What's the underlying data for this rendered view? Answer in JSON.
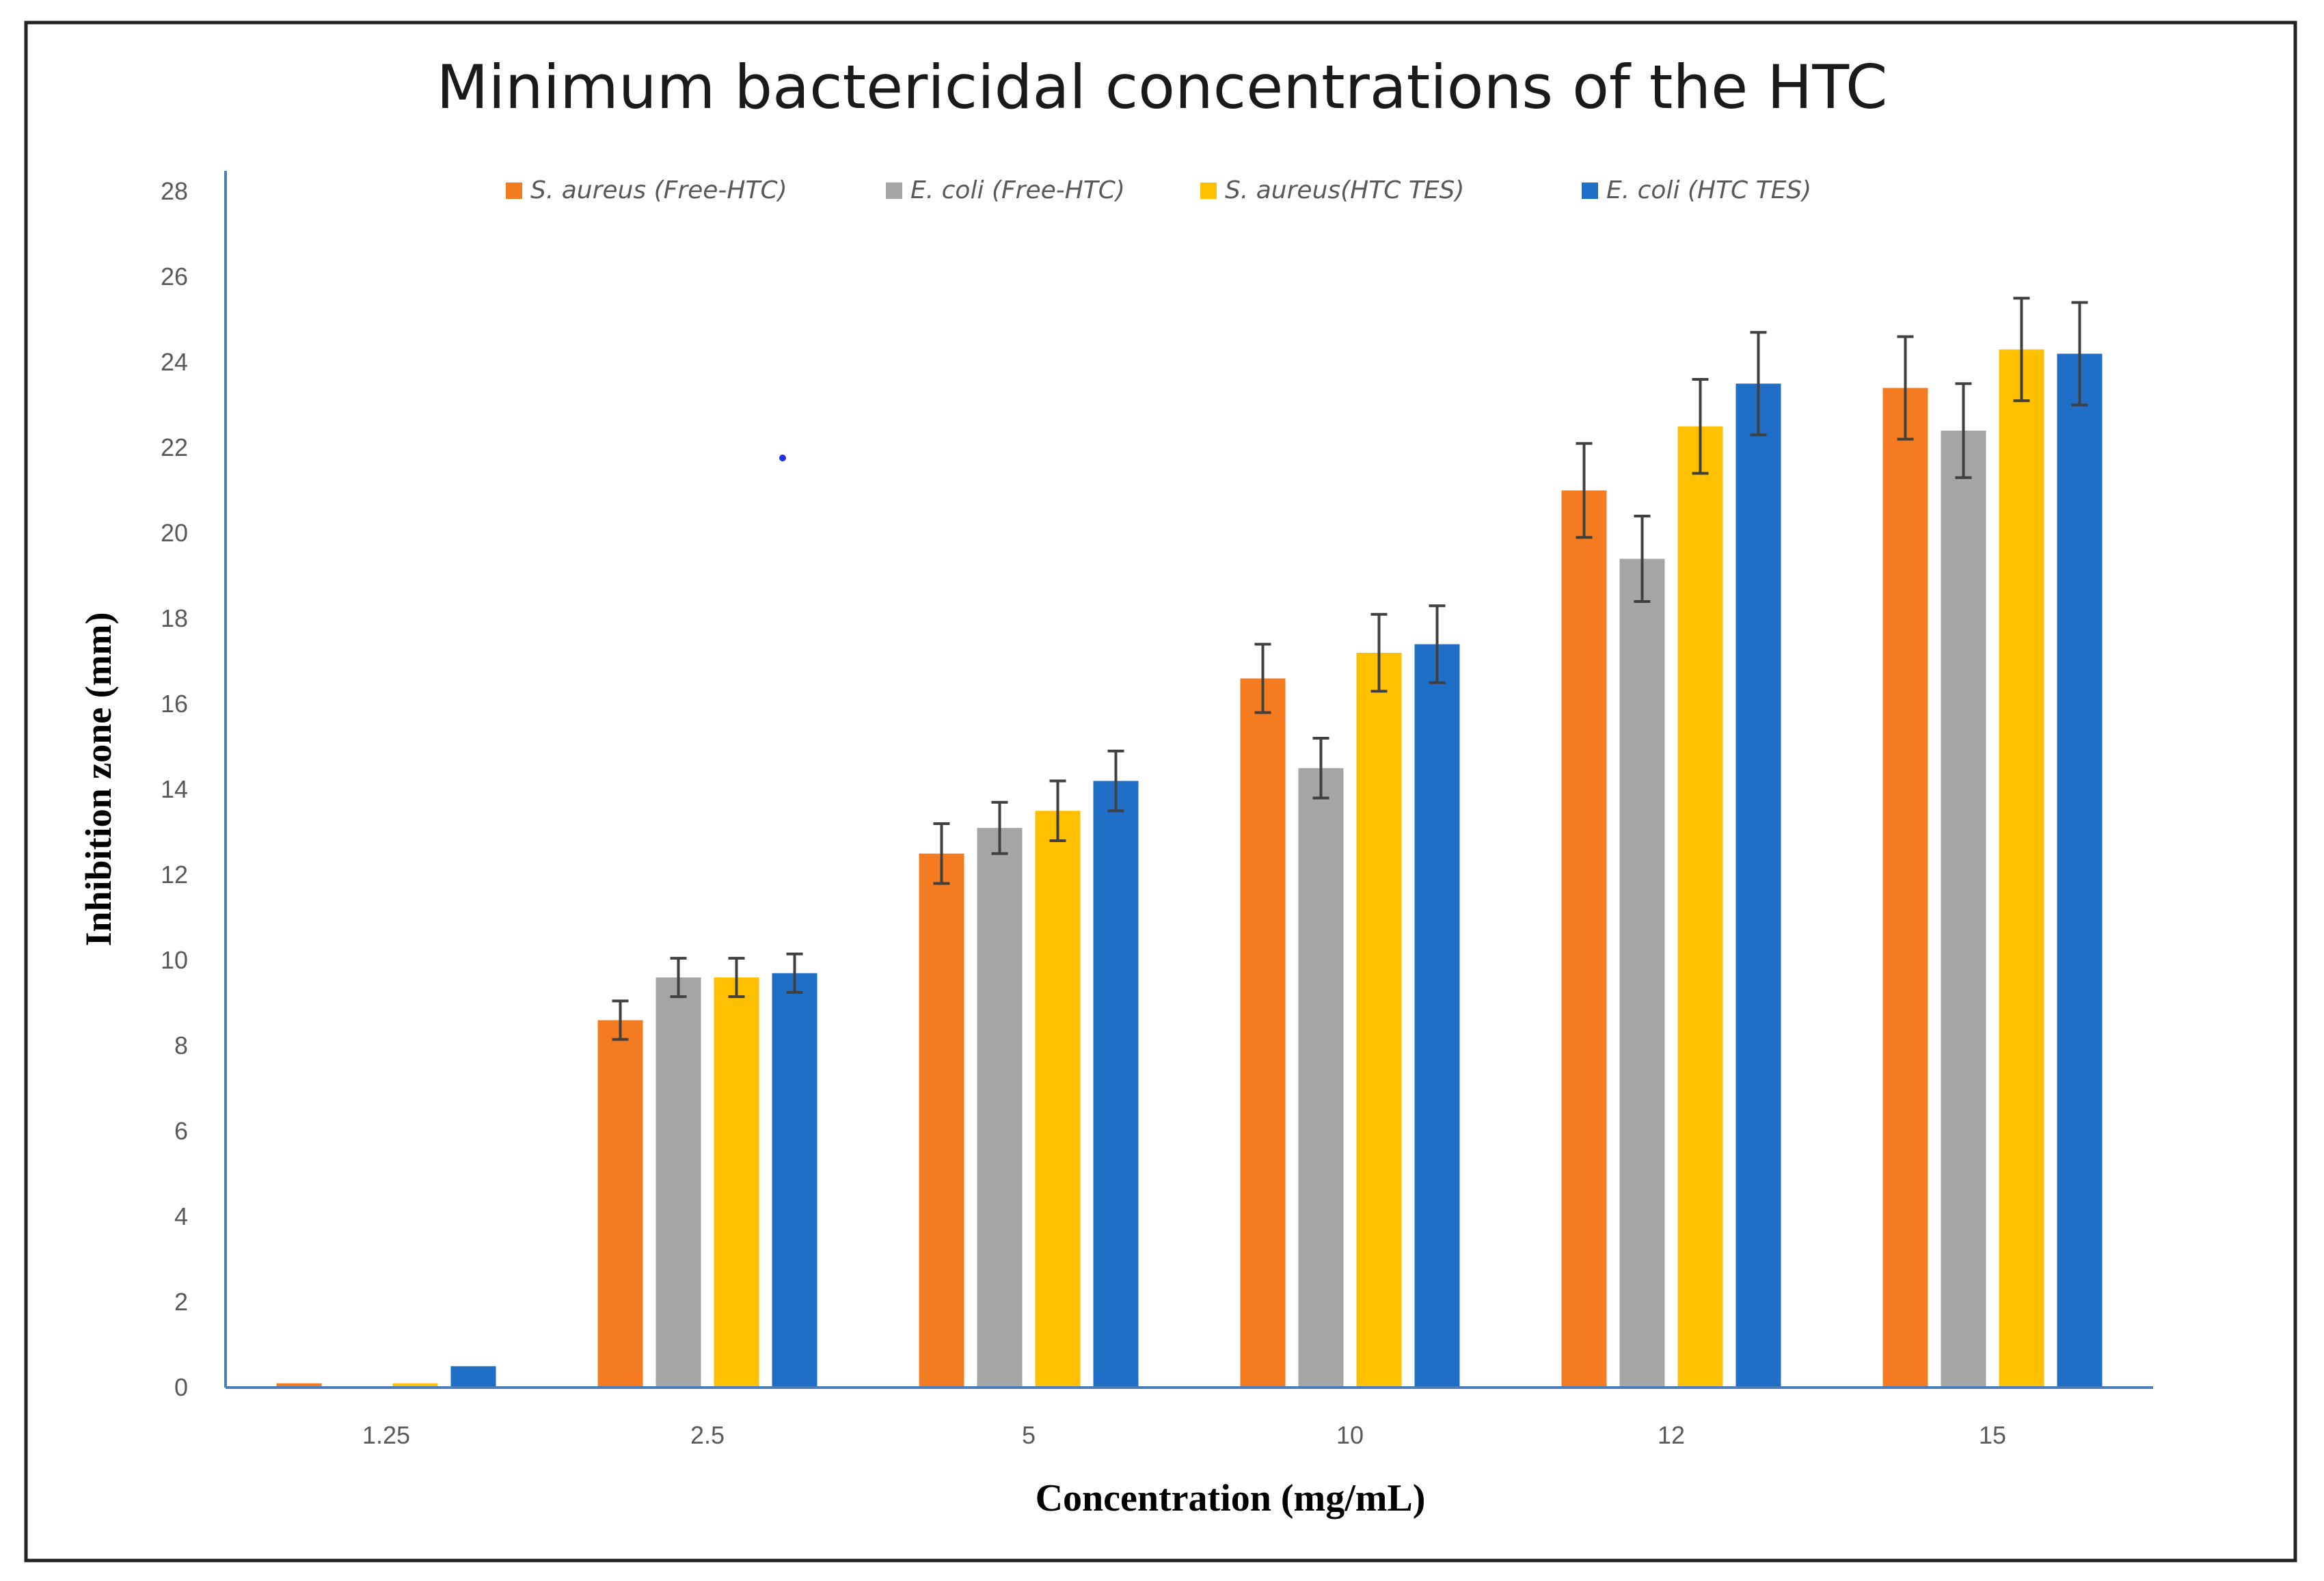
{
  "chart_data": {
    "type": "bar",
    "title": "Minimum bactericidal concentrations of the HTC",
    "xlabel": "Concentration (mg/mL)",
    "ylabel": "Inhibition zone (mm)",
    "ylim": [
      0,
      28
    ],
    "yticks": [
      0,
      2,
      4,
      6,
      8,
      10,
      12,
      14,
      16,
      18,
      20,
      22,
      24,
      26,
      28
    ],
    "categories": [
      "1.25",
      "2.5",
      "5",
      "10",
      "12",
      "15"
    ],
    "grid": false,
    "legend_position": "top-center",
    "series": [
      {
        "name": "S. aureus (Free-HTC)",
        "color": "#f47b20",
        "values": [
          0.1,
          8.6,
          12.5,
          16.6,
          21.0,
          23.4
        ],
        "errors": [
          0,
          0.45,
          0.7,
          0.8,
          1.1,
          1.2
        ]
      },
      {
        "name": "E. coli (Free-HTC)",
        "color": "#a5a5a5",
        "values": [
          0,
          9.6,
          13.1,
          14.5,
          19.4,
          22.4
        ],
        "errors": [
          0,
          0.45,
          0.6,
          0.7,
          1.0,
          1.1
        ]
      },
      {
        "name": "S. aureus(HTC TES)",
        "color": "#ffc000",
        "values": [
          0.1,
          9.6,
          13.5,
          17.2,
          22.5,
          24.3
        ],
        "errors": [
          0,
          0.45,
          0.7,
          0.9,
          1.1,
          1.2
        ]
      },
      {
        "name": "E. coli (HTC TES)",
        "color": "#1f6fc6",
        "values": [
          0.5,
          9.7,
          14.2,
          17.4,
          23.5,
          24.2
        ],
        "errors": [
          0,
          0.45,
          0.7,
          0.9,
          1.2,
          1.2
        ]
      }
    ],
    "colors": {
      "axis": "#4a7ebb",
      "tick_text": "#595959",
      "error_bar": "#404040",
      "title": "#1a1a1a",
      "frame": "#222222"
    }
  }
}
